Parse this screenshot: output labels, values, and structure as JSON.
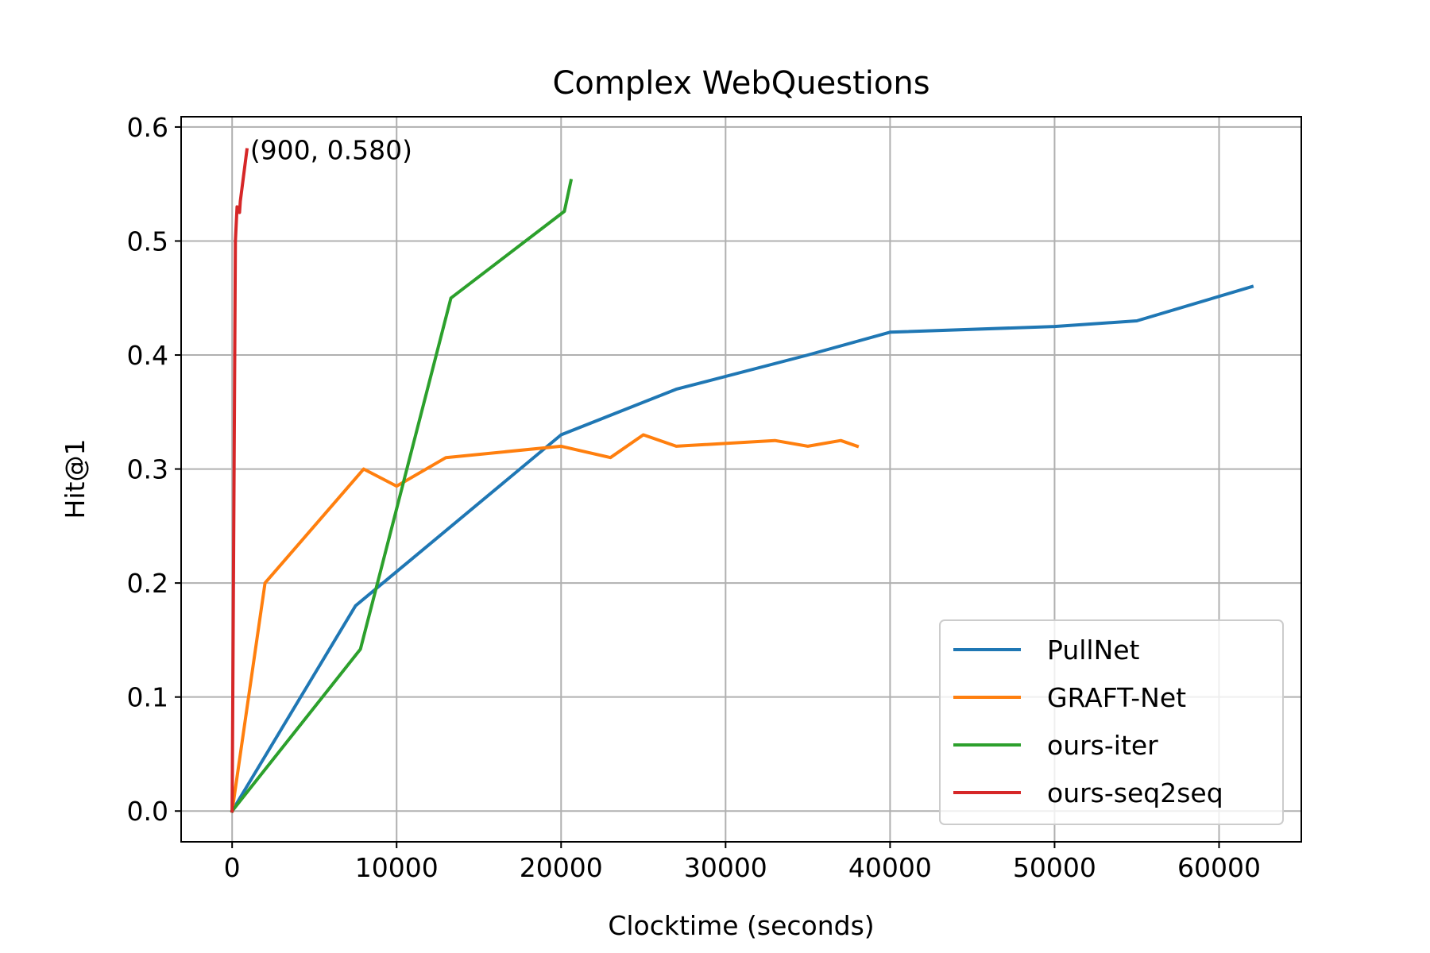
{
  "chart_data": {
    "type": "line",
    "title": "Complex WebQuestions",
    "xlabel": "Clocktime (seconds)",
    "ylabel": "Hit@1",
    "xlim": [
      -3100,
      65000
    ],
    "ylim": [
      -0.027,
      0.609
    ],
    "xticks": [
      0,
      10000,
      20000,
      30000,
      40000,
      50000,
      60000
    ],
    "yticks": [
      0.0,
      0.1,
      0.2,
      0.3,
      0.4,
      0.5,
      0.6
    ],
    "xtick_labels": [
      "0",
      "10000",
      "20000",
      "30000",
      "40000",
      "50000",
      "60000"
    ],
    "ytick_labels": [
      "0.0",
      "0.1",
      "0.2",
      "0.3",
      "0.4",
      "0.5",
      "0.6"
    ],
    "grid": true,
    "legend_position": "lower-right",
    "series": [
      {
        "name": "PullNet",
        "color": "#1f77b4",
        "x": [
          0,
          7500,
          20000,
          27000,
          35000,
          40000,
          50000,
          55000,
          62000
        ],
        "y": [
          0.0,
          0.18,
          0.33,
          0.37,
          0.4,
          0.42,
          0.425,
          0.43,
          0.46
        ]
      },
      {
        "name": "GRAFT-Net",
        "color": "#ff7f0e",
        "x": [
          0,
          2000,
          8000,
          10000,
          13000,
          20000,
          23000,
          25000,
          27000,
          33000,
          35000,
          37000,
          38000
        ],
        "y": [
          0.0,
          0.2,
          0.3,
          0.285,
          0.31,
          0.32,
          0.31,
          0.33,
          0.32,
          0.325,
          0.32,
          0.325,
          0.32
        ]
      },
      {
        "name": "ours-iter",
        "color": "#2ca02c",
        "x": [
          0,
          7800,
          13300,
          20200,
          20600
        ],
        "y": [
          0.0,
          0.142,
          0.45,
          0.526,
          0.553
        ]
      },
      {
        "name": "ours-seq2seq",
        "color": "#d62728",
        "x": [
          0,
          200,
          300,
          450,
          500,
          900
        ],
        "y": [
          0.0,
          0.5,
          0.53,
          0.525,
          0.535,
          0.58
        ]
      }
    ],
    "annotations": [
      {
        "text": "(900, 0.580)",
        "x": 900,
        "y": 0.58
      }
    ]
  }
}
